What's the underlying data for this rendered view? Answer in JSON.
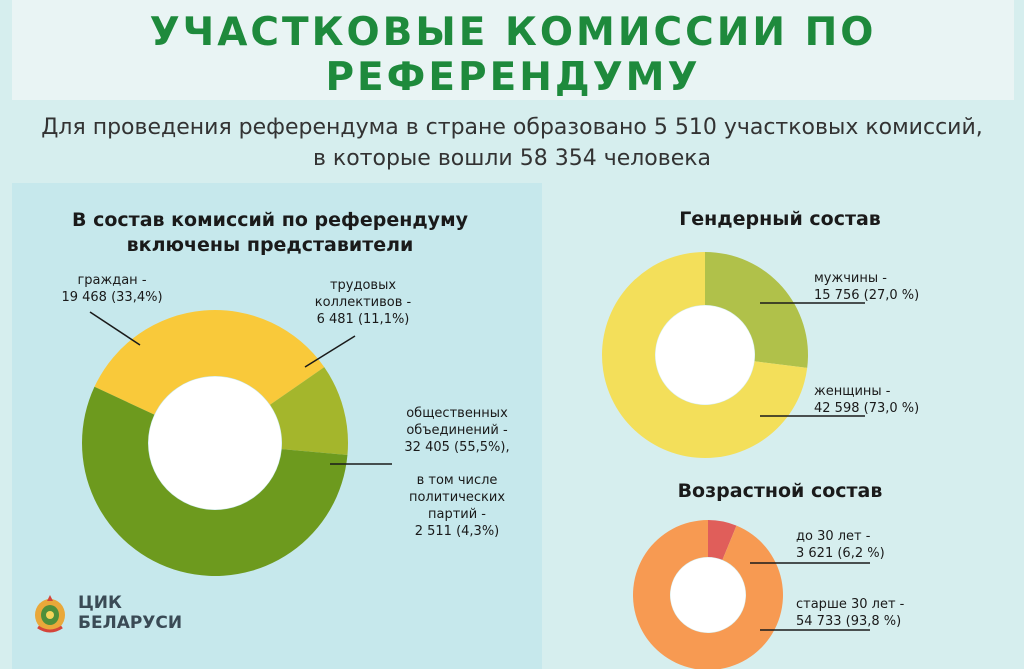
{
  "header": {
    "title": "УЧАСТКОВЫЕ КОМИССИИ ПО РЕФЕРЕНДУМУ",
    "subtitle_line1": "Для проведения референдума в стране образовано 5 510 участковых комиссий,",
    "subtitle_line2": "в которые вошли 58 354 человека"
  },
  "logo": {
    "line1": "ЦИК",
    "line2": "БЕЛАРУСИ"
  },
  "colors": {
    "title_green": "#1e8a3c",
    "yellow": "#f9c93a",
    "olive": "#a4b62c",
    "green": "#6d9a1e",
    "light_yellow": "#f3df5a",
    "light_olive": "#b0c14a",
    "orange": "#f79a52",
    "red": "#e05e5a"
  },
  "chart_data": [
    {
      "type": "pie",
      "title_line1": "В состав комиссий по референдуму",
      "title_line2": "включены представители",
      "slices": [
        {
          "value": 33.4,
          "count": "19 468",
          "color": "#f9c93a",
          "label_lines": [
            "граждан  -",
            "19 468 (33,4%)"
          ]
        },
        {
          "value": 11.1,
          "count": "6 481",
          "color": "#a4b62c",
          "label_lines": [
            "трудовых",
            "коллективов -",
            "6 481 (11,1%)"
          ]
        },
        {
          "value": 55.5,
          "count": "32 405",
          "color": "#6d9a1e",
          "label_lines": [
            "общественных",
            "объединений -",
            "32 405 (55,5%),"
          ],
          "sub_label_lines": [
            "в том числе",
            "политических",
            "партий  -",
            "2 511 (4,3%)"
          ]
        }
      ]
    },
    {
      "type": "pie",
      "title": "Гендерный состав",
      "slices": [
        {
          "value": 27.0,
          "count": "15 756",
          "color": "#b0c14a",
          "label_lines": [
            "мужчины -",
            "15 756 (27,0 %)"
          ]
        },
        {
          "value": 73.0,
          "count": "42 598",
          "color": "#f3df5a",
          "label_lines": [
            "женщины -",
            "42 598 (73,0 %)"
          ]
        }
      ]
    },
    {
      "type": "pie",
      "title": "Возрастной состав",
      "slices": [
        {
          "value": 6.2,
          "count": "3 621",
          "color": "#e05e5a",
          "label_lines": [
            "до 30 лет -",
            "3 621 (6,2 %)"
          ]
        },
        {
          "value": 93.8,
          "count": "54 733",
          "color": "#f79a52",
          "label_lines": [
            "старше 30 лет -",
            "54 733 (93,8 %)"
          ]
        }
      ]
    }
  ]
}
